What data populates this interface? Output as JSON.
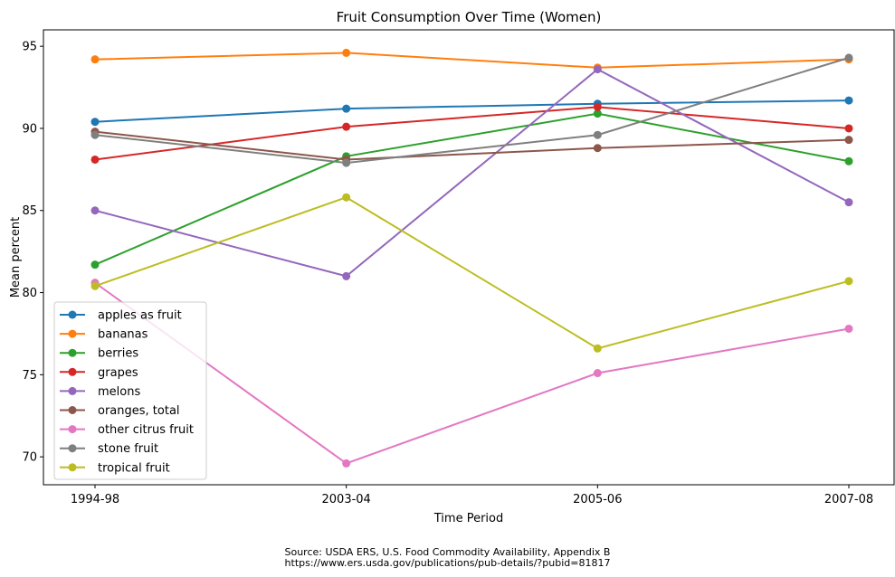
{
  "chart_data": {
    "type": "line",
    "title": "Fruit Consumption Over Time (Women)",
    "xlabel": "Time Period",
    "ylabel": "Mean percent",
    "categories": [
      "1994-98",
      "2003-04",
      "2005-06",
      "2007-08"
    ],
    "ylim": [
      68.3,
      96.0
    ],
    "yticks": [
      70,
      75,
      80,
      85,
      90,
      95
    ],
    "legend_position": "lower-left",
    "grid": false,
    "series": [
      {
        "name": "apples as fruit",
        "color": "#1f77b4",
        "values": [
          90.4,
          91.2,
          91.5,
          91.7
        ]
      },
      {
        "name": "bananas",
        "color": "#ff7f0e",
        "values": [
          94.2,
          94.6,
          93.7,
          94.2
        ]
      },
      {
        "name": "berries",
        "color": "#2ca02c",
        "values": [
          81.7,
          88.3,
          90.9,
          88.0
        ]
      },
      {
        "name": "grapes",
        "color": "#d62728",
        "values": [
          88.1,
          90.1,
          91.3,
          90.0
        ]
      },
      {
        "name": "melons",
        "color": "#9467bd",
        "values": [
          85.0,
          81.0,
          93.6,
          85.5
        ]
      },
      {
        "name": "oranges, total",
        "color": "#8c564b",
        "values": [
          89.8,
          88.1,
          88.8,
          89.3
        ]
      },
      {
        "name": "other citrus fruit",
        "color": "#e377c2",
        "values": [
          80.6,
          69.6,
          75.1,
          77.8
        ]
      },
      {
        "name": "stone fruit",
        "color": "#7f7f7f",
        "values": [
          89.6,
          87.9,
          89.6,
          94.3
        ]
      },
      {
        "name": "tropical fruit",
        "color": "#bcbd22",
        "values": [
          80.4,
          85.8,
          76.6,
          80.7
        ]
      }
    ]
  },
  "source": {
    "line1": "Source: USDA ERS, U.S. Food Commodity Availability, Appendix B",
    "line2": "https://www.ers.usda.gov/publications/pub-details/?pubid=81817"
  }
}
